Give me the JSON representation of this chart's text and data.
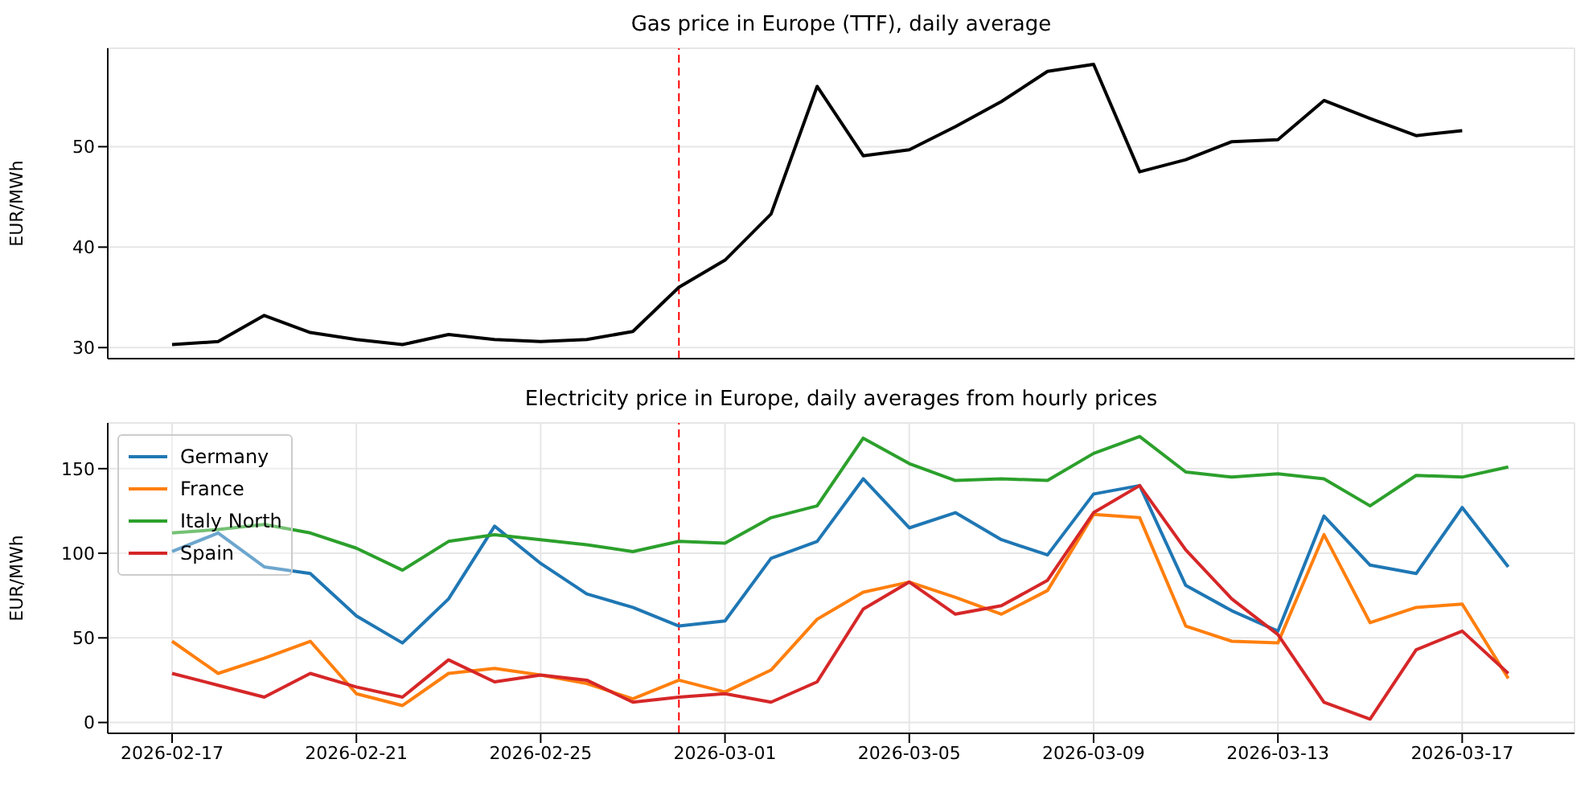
{
  "chart_data": [
    {
      "type": "line",
      "title": "Gas price in Europe (TTF), daily average",
      "ylabel": "EUR/MWh",
      "x": [
        "2026-02-17",
        "2026-02-18",
        "2026-02-19",
        "2026-02-20",
        "2026-02-21",
        "2026-02-22",
        "2026-02-23",
        "2026-02-24",
        "2026-02-25",
        "2026-02-26",
        "2026-02-27",
        "2026-02-28",
        "2026-03-01",
        "2026-03-02",
        "2026-03-03",
        "2026-03-04",
        "2026-03-05",
        "2026-03-06",
        "2026-03-07",
        "2026-03-08",
        "2026-03-09",
        "2026-03-10",
        "2026-03-11",
        "2026-03-12",
        "2026-03-13",
        "2026-03-14",
        "2026-03-15",
        "2026-03-16",
        "2026-03-17"
      ],
      "series": [
        {
          "color": "#000000",
          "values": [
            30.3,
            30.6,
            33.2,
            31.5,
            30.8,
            30.3,
            31.3,
            30.8,
            30.6,
            30.8,
            31.6,
            36.0,
            38.7,
            43.3,
            56.0,
            49.1,
            49.7,
            52.0,
            54.5,
            57.5,
            58.2,
            47.5,
            48.7,
            50.5,
            50.7,
            54.6,
            52.8,
            51.1,
            51.6
          ]
        }
      ],
      "xlim": [
        "2026-02-15T14:30",
        "2026-03-19T10:30"
      ],
      "xticks": [
        "2026-02-17",
        "2026-02-21",
        "2026-02-25",
        "2026-03-01",
        "2026-03-05",
        "2026-03-09",
        "2026-03-13",
        "2026-03-17"
      ],
      "ylim": [
        28.9,
        59.8
      ],
      "yticks": [
        30,
        40,
        50
      ],
      "tick_labels": "y",
      "grid": true,
      "marker": "none",
      "line_style": "solid",
      "ref_lines": [
        {
          "axis": "x",
          "value": "2026-02-28",
          "color": "#ff0000",
          "line_style": "dashed"
        }
      ]
    },
    {
      "type": "line",
      "title": "Electricity price in Europe, daily averages from hourly prices",
      "ylabel": "EUR/MWh",
      "x": [
        "2026-02-17",
        "2026-02-18",
        "2026-02-19",
        "2026-02-20",
        "2026-02-21",
        "2026-02-22",
        "2026-02-23",
        "2026-02-24",
        "2026-02-25",
        "2026-02-26",
        "2026-02-27",
        "2026-02-28",
        "2026-03-01",
        "2026-03-02",
        "2026-03-03",
        "2026-03-04",
        "2026-03-05",
        "2026-03-06",
        "2026-03-07",
        "2026-03-08",
        "2026-03-09",
        "2026-03-10",
        "2026-03-11",
        "2026-03-12",
        "2026-03-13",
        "2026-03-14",
        "2026-03-15",
        "2026-03-16",
        "2026-03-17",
        "2026-03-18"
      ],
      "series": [
        {
          "name": "Germany",
          "color": "#1f77b4",
          "values": [
            101,
            112,
            92,
            88,
            63,
            47,
            73,
            116,
            94,
            76,
            68,
            57,
            60,
            97,
            107,
            144,
            115,
            124,
            108,
            99,
            135,
            140,
            81,
            66,
            54,
            122,
            93,
            88,
            127,
            92
          ]
        },
        {
          "name": "France",
          "color": "#ff7f0e",
          "values": [
            48,
            29,
            38,
            48,
            17,
            10,
            29,
            32,
            28,
            23,
            14,
            25,
            18,
            31,
            61,
            77,
            83,
            74,
            64,
            78,
            123,
            121,
            57,
            48,
            47,
            111,
            59,
            68,
            70,
            26
          ]
        },
        {
          "name": "Italy North",
          "color": "#2ca02c",
          "values": [
            112,
            114,
            117,
            112,
            103,
            90,
            107,
            111,
            108,
            105,
            101,
            107,
            106,
            121,
            128,
            168,
            153,
            143,
            144,
            143,
            159,
            169,
            148,
            145,
            147,
            144,
            128,
            146,
            145,
            151
          ]
        },
        {
          "name": "Spain",
          "color": "#d62728",
          "values": [
            29,
            22,
            15,
            29,
            21,
            15,
            37,
            24,
            28,
            25,
            12,
            15,
            17,
            12,
            24,
            67,
            83,
            64,
            69,
            84,
            124,
            140,
            102,
            73,
            52,
            12,
            2,
            43,
            54,
            29
          ]
        }
      ],
      "xlim": [
        "2026-02-15T14:30",
        "2026-03-19T10:30"
      ],
      "xticks": [
        "2026-02-17",
        "2026-02-21",
        "2026-02-25",
        "2026-03-01",
        "2026-03-05",
        "2026-03-09",
        "2026-03-13",
        "2026-03-17"
      ],
      "ylim": [
        -6.4,
        177
      ],
      "yticks": [
        0,
        50,
        100,
        150
      ],
      "grid": true,
      "legend": "top left",
      "marker": "none",
      "line_style": "solid",
      "ref_lines": [
        {
          "axis": "x",
          "value": "2026-02-28",
          "color": "#ff0000",
          "line_style": "dashed"
        }
      ]
    }
  ]
}
